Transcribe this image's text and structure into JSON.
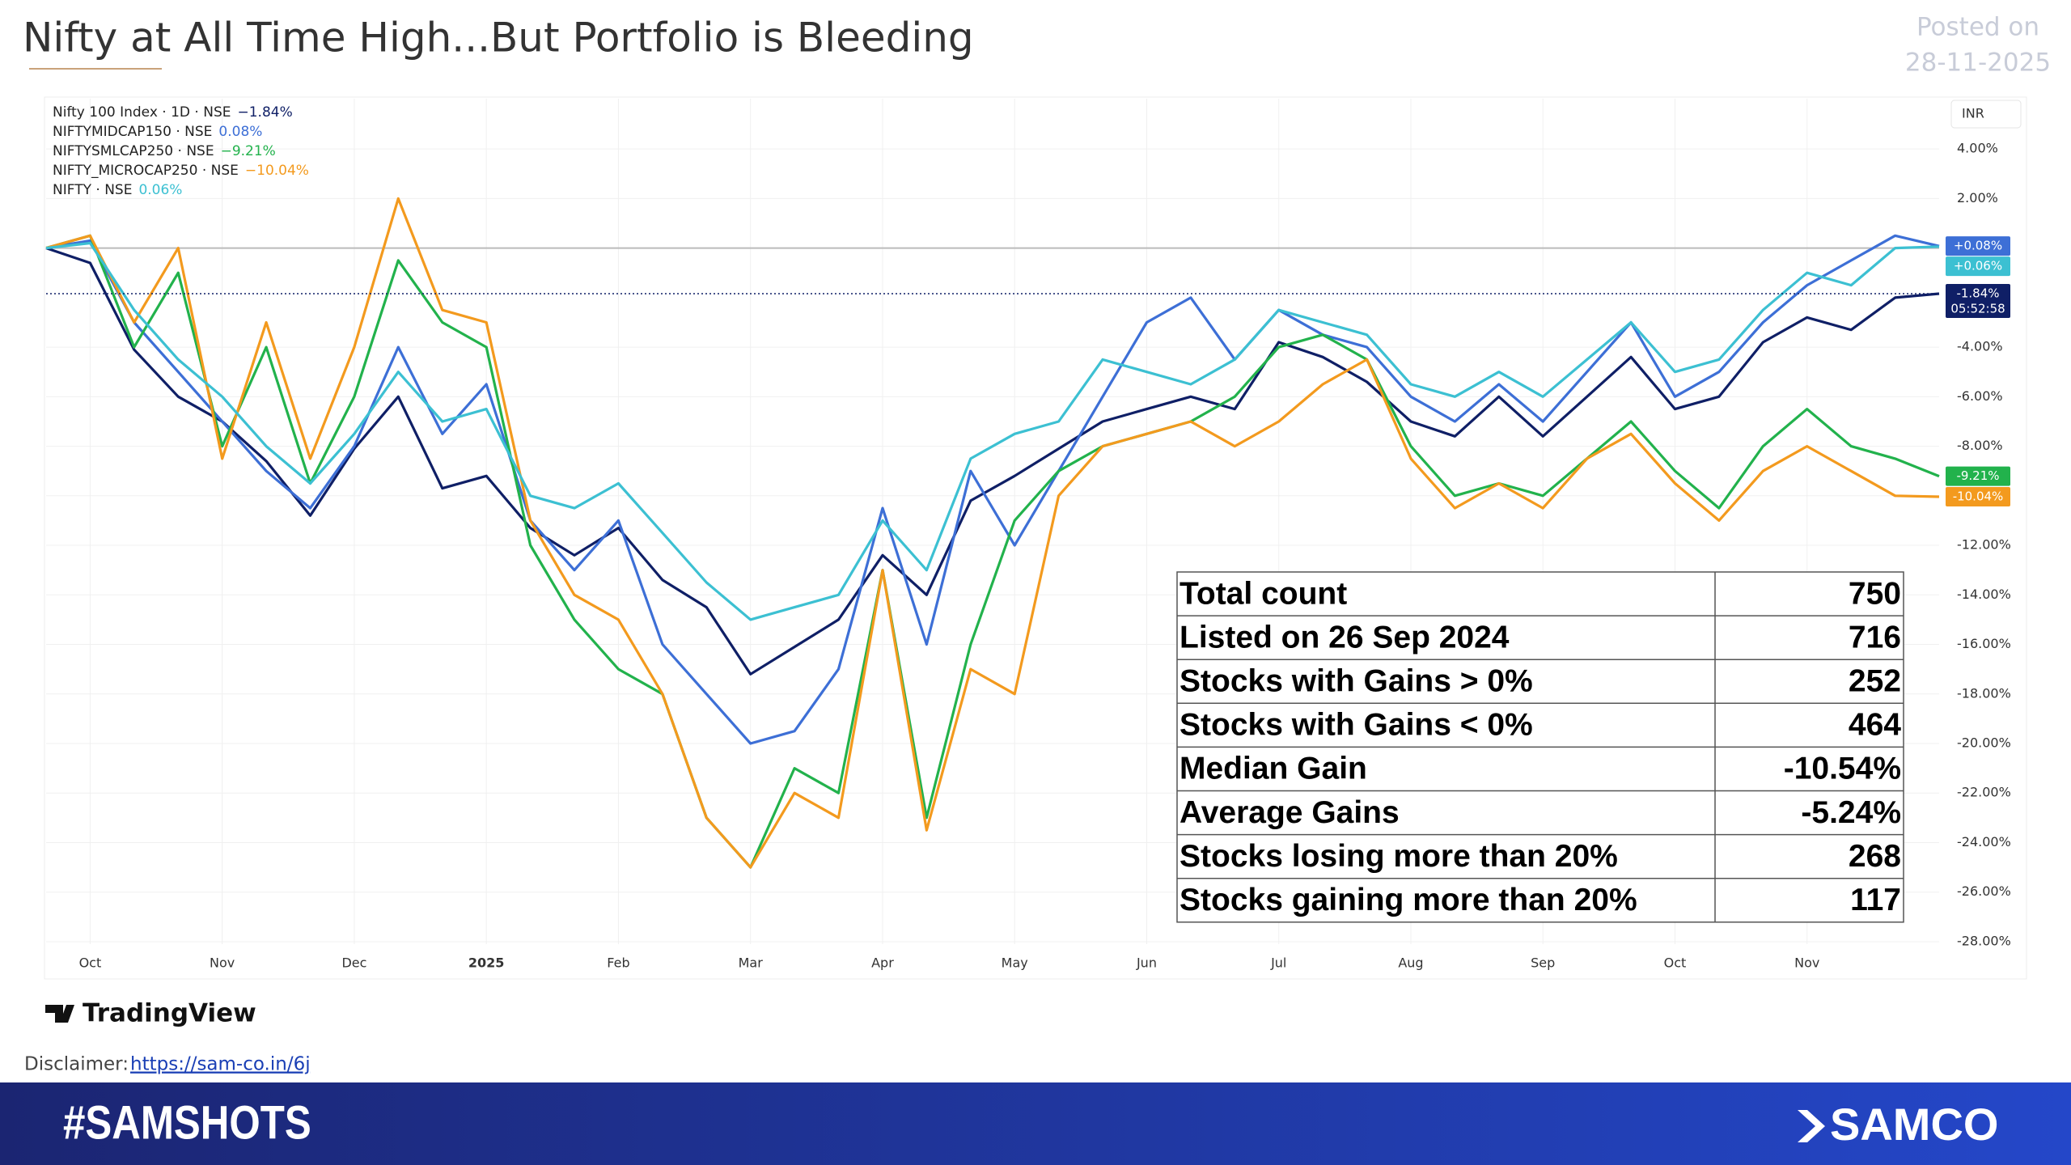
{
  "header": {
    "title": "Nifty at All Time High...But Portfolio is Bleeding",
    "posted_label": "Posted on",
    "posted_date": "28-11-2025"
  },
  "chart_data": {
    "type": "line",
    "currency": "INR",
    "countdown": "05:52:58",
    "grid": true,
    "categories": [
      null,
      "Oct",
      null,
      null,
      "Nov",
      null,
      null,
      "Dec",
      null,
      null,
      "2025",
      null,
      null,
      "Feb",
      null,
      null,
      "Mar",
      null,
      null,
      "Apr",
      null,
      null,
      "May",
      null,
      null,
      "Jun",
      null,
      null,
      "Jul",
      null,
      null,
      "Aug",
      null,
      null,
      "Sep",
      null,
      null,
      "Oct",
      null,
      null,
      "Nov",
      null,
      null,
      null
    ],
    "ylim": [
      -28.1,
      6.03
    ],
    "yticks": [
      {
        "value": 4,
        "label": "4.00%"
      },
      {
        "value": 2,
        "label": "2.00%"
      },
      {
        "value": -4,
        "label": "-4.00%"
      },
      {
        "value": -6,
        "label": "-6.00%"
      },
      {
        "value": -8,
        "label": "-8.00%"
      },
      {
        "value": -10,
        "label": "-10.00%"
      },
      {
        "value": -12,
        "label": "-12.00%"
      },
      {
        "value": -14,
        "label": "-14.00%"
      },
      {
        "value": -16,
        "label": "-16.00%"
      },
      {
        "value": -18,
        "label": "-18.00%"
      },
      {
        "value": -20,
        "label": "-20.00%"
      },
      {
        "value": -22,
        "label": "-22.00%"
      },
      {
        "value": -24,
        "label": "-24.00%"
      },
      {
        "value": -26,
        "label": "-26.00%"
      },
      {
        "value": -28,
        "label": "-28.00%"
      }
    ],
    "series": [
      {
        "name": "Nifty 100 Index · 1D · NSE",
        "legend_label": "−1.84%",
        "end_label": "-1.84%",
        "color": "#0f1f66",
        "values": [
          0,
          -0.6,
          -4.1,
          -6,
          -7,
          -8.6,
          -10.8,
          -8.1,
          -6,
          -9.7,
          -9.2,
          -11.3,
          -12.4,
          -11.3,
          -13.4,
          -14.5,
          -17.2,
          -16.1,
          -15,
          -12.4,
          -14,
          -10.2,
          -9.2,
          -8.1,
          -7,
          -6.5,
          -6,
          -6.5,
          -3.8,
          -4.4,
          -5.4,
          -7,
          -7.6,
          -6,
          -7.6,
          -6,
          -4.4,
          -6.5,
          -6,
          -3.8,
          -2.8,
          -3.3,
          -2,
          -1.84
        ]
      },
      {
        "name": "NIFTYMIDCAP150 · NSE",
        "legend_label": "0.08%",
        "end_label": "+0.08%",
        "color": "#3d6fd6",
        "values": [
          0,
          0.3,
          -3,
          -5,
          -7,
          -9,
          -10.5,
          -8,
          -4,
          -7.5,
          -5.5,
          -11,
          -13,
          -11,
          -16,
          -18,
          -20,
          -19.5,
          -17,
          -10.5,
          -16,
          -9,
          -12,
          -9,
          -6,
          -3,
          -2,
          -4.5,
          -2.5,
          -3.5,
          -4,
          -6,
          -7,
          -5.5,
          -7,
          -5,
          -3,
          -6,
          -5,
          -3,
          -1.5,
          -0.5,
          0.5,
          0.08
        ]
      },
      {
        "name": "NIFTYSMLCAP250 · NSE",
        "legend_label": "−9.21%",
        "end_label": "-9.21%",
        "color": "#22b24c",
        "values": [
          0,
          0.5,
          -4,
          -1,
          -8,
          -4,
          -9.5,
          -6,
          -0.5,
          -3,
          -4,
          -12,
          -15,
          -17,
          -18,
          -23,
          -25,
          -21,
          -22,
          -13,
          -23,
          -16,
          -11,
          -9,
          -8,
          -7.5,
          -7,
          -6,
          -4,
          -3.5,
          -4.5,
          -8,
          -10,
          -9.5,
          -10,
          -8.5,
          -7,
          -9,
          -10.5,
          -8,
          -6.5,
          -8,
          -8.5,
          -9.21
        ]
      },
      {
        "name": "NIFTY_MICROCAP250 · NSE",
        "legend_label": "−10.04%",
        "end_label": "-10.04%",
        "color": "#f39a1e",
        "values": [
          0,
          0.5,
          -3,
          0,
          -8.5,
          -3,
          -8.5,
          -4,
          2,
          -2.5,
          -3,
          -11,
          -14,
          -15,
          -18,
          -23,
          -25,
          -22,
          -23,
          -13,
          -23.5,
          -17,
          -18,
          -10,
          -8,
          -7.5,
          -7,
          -8,
          -7,
          -5.5,
          -4.5,
          -8.5,
          -10.5,
          -9.5,
          -10.5,
          -8.5,
          -7.5,
          -9.5,
          -11,
          -9,
          -8,
          -9,
          -10,
          -10.04
        ]
      },
      {
        "name": "NIFTY · NSE",
        "legend_label": "0.06%",
        "end_label": "+0.06%",
        "color": "#3cc0d2",
        "values": [
          0,
          0.2,
          -2.5,
          -4.5,
          -6,
          -8,
          -9.5,
          -7.5,
          -5,
          -7,
          -6.5,
          -10,
          -10.5,
          -9.5,
          -11.5,
          -13.5,
          -15,
          -14.5,
          -14,
          -11,
          -13,
          -8.5,
          -7.5,
          -7,
          -4.5,
          -5,
          -5.5,
          -4.5,
          -2.5,
          -3,
          -3.5,
          -5.5,
          -6,
          -5,
          -6,
          -4.5,
          -3,
          -5,
          -4.5,
          -2.5,
          -1,
          -1.5,
          0,
          0.06
        ]
      }
    ]
  },
  "table": {
    "rows": [
      [
        "Total count",
        "750"
      ],
      [
        "Listed on 26 Sep 2024",
        "716"
      ],
      [
        "Stocks with Gains > 0%",
        "252"
      ],
      [
        "Stocks with Gains < 0%",
        "464"
      ],
      [
        "Median Gain",
        "-10.54%"
      ],
      [
        "Average Gains",
        "-5.24%"
      ],
      [
        "Stocks losing more than 20%",
        "268"
      ],
      [
        "Stocks gaining more than 20%",
        "117"
      ]
    ]
  },
  "footer": {
    "brand": "TradingView",
    "disclaimer": "Disclaimer:",
    "link": "https://sam-co.in/6j",
    "hashtag": "#SAMSHOTS",
    "logo": "SAMCO"
  }
}
